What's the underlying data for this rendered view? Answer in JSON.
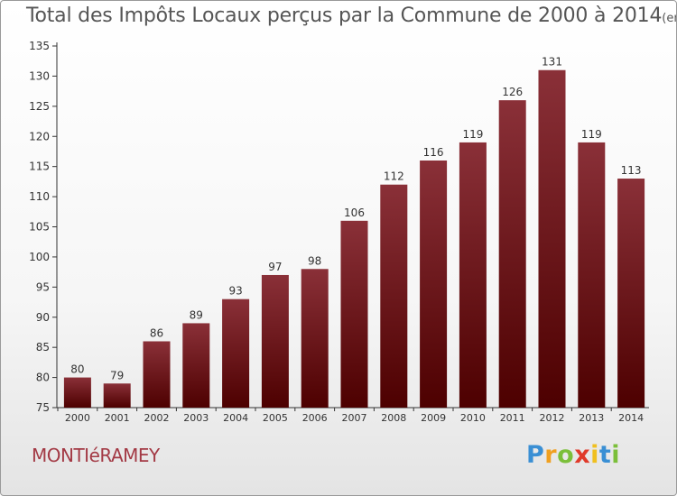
{
  "header": {
    "title": "Total des Impôts Locaux perçus par la Commune de 2000 à 2014",
    "unit": "(en milliers d'€)"
  },
  "footer": {
    "commune": "MONTIéRAMEY",
    "logo_letters": [
      "P",
      "r",
      "o",
      "x",
      "i",
      "t",
      "i"
    ]
  },
  "colors": {
    "bar_top": "#8a3038",
    "bar_bottom": "#4d0000",
    "axis": "#333333",
    "text": "#333333"
  },
  "chart_data": {
    "type": "bar",
    "title": "Total des Impôts Locaux perçus par la Commune de 2000 à 2014",
    "xlabel": "",
    "ylabel": "",
    "categories": [
      "2000",
      "2001",
      "2002",
      "2003",
      "2004",
      "2005",
      "2006",
      "2007",
      "2008",
      "2009",
      "2010",
      "2011",
      "2012",
      "2013",
      "2014"
    ],
    "values": [
      80,
      79,
      86,
      89,
      93,
      97,
      98,
      106,
      112,
      116,
      119,
      126,
      131,
      119,
      113
    ],
    "ylim": [
      75,
      135
    ],
    "yticks": [
      75,
      80,
      85,
      90,
      95,
      100,
      105,
      110,
      115,
      120,
      125,
      130,
      135
    ],
    "grid": false,
    "data_labels": true
  }
}
